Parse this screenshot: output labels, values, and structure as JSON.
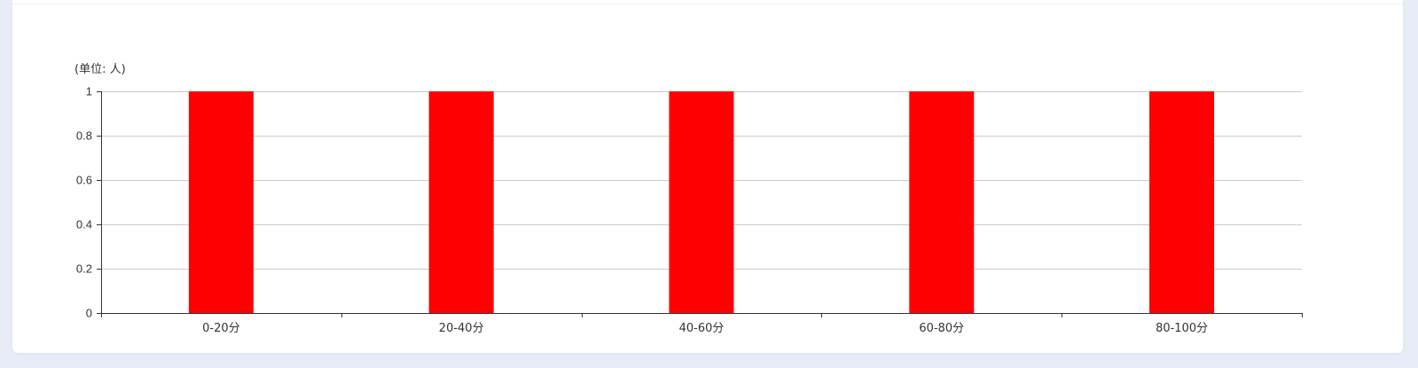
{
  "chart_data": {
    "type": "bar",
    "unit_label": "(单位: 人)",
    "categories": [
      "0-20分",
      "20-40分",
      "40-60分",
      "60-80分",
      "80-100分"
    ],
    "values": [
      1,
      1,
      1,
      1,
      1
    ],
    "ylim": [
      0,
      1
    ],
    "yticks": [
      "0",
      "0.2",
      "0.4",
      "0.6",
      "0.8",
      "1"
    ],
    "grid": true,
    "colors": {
      "bar": "#ff0000",
      "grid": "#cccccc",
      "axis": "#333333",
      "text": "#333333"
    }
  }
}
